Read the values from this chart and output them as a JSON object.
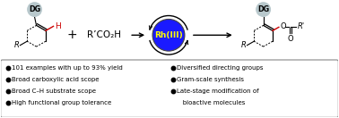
{
  "bg_color": "#ffffff",
  "box_bg": "#ffffff",
  "box_edge": "#888888",
  "rh_circle_fill": "#1a1aff",
  "rh_circle_edge": "#444444",
  "rh_text": "Rh(III)",
  "rh_text_color": "#ffff00",
  "dg_fill": "#b8c8cc",
  "dg_text": "DG",
  "bullet_left": [
    "101 examples with up to 93% yield",
    "Broad carboxylic acid scope",
    "Broad C–H substrate scope",
    "High functional group tolerance"
  ],
  "bullet_right": [
    "Diversified directing groups",
    "Gram-scale synthesis",
    "Late-stage modification of",
    "   bioactive molecules"
  ],
  "plus_text": "+",
  "reagent_text": "R’CO₂H",
  "red_color": "#cc0000",
  "figsize": [
    3.78,
    1.32
  ],
  "dpi": 100
}
